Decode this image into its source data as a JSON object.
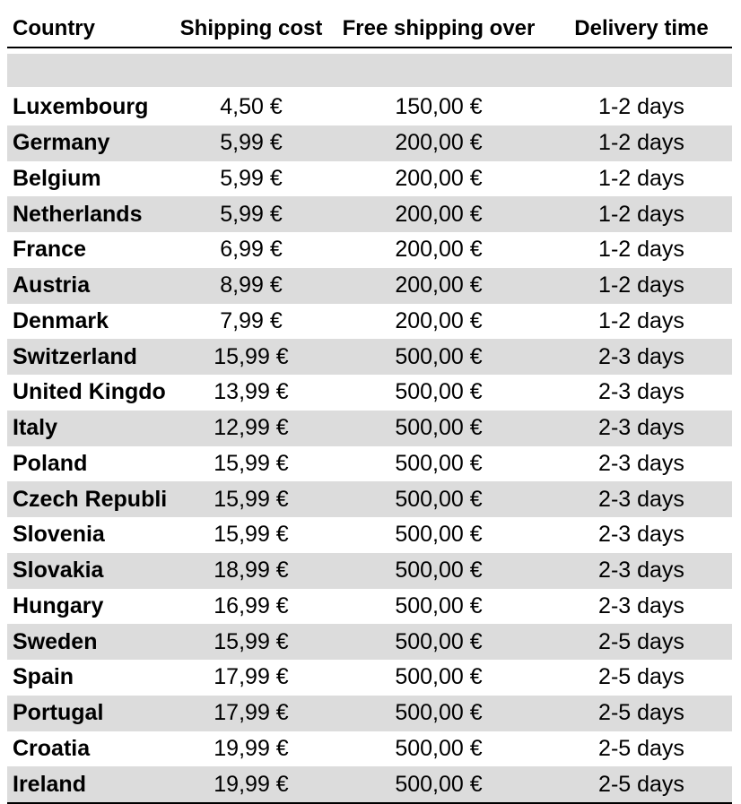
{
  "table": {
    "headers": {
      "country": "Country",
      "shipping_cost": "Shipping cost",
      "free_shipping_over": "Free shipping over",
      "delivery_time": "Delivery time"
    },
    "rows": [
      {
        "country": "Luxembourg",
        "shipping_cost": "4,50 €",
        "free_shipping_over": "150,00 €",
        "delivery_time": "1-2 days"
      },
      {
        "country": "Germany",
        "shipping_cost": "5,99 €",
        "free_shipping_over": "200,00 €",
        "delivery_time": "1-2 days"
      },
      {
        "country": "Belgium",
        "shipping_cost": "5,99 €",
        "free_shipping_over": "200,00 €",
        "delivery_time": "1-2 days"
      },
      {
        "country": "Netherlands",
        "shipping_cost": "5,99 €",
        "free_shipping_over": "200,00 €",
        "delivery_time": "1-2 days"
      },
      {
        "country": "France",
        "shipping_cost": "6,99 €",
        "free_shipping_over": "200,00 €",
        "delivery_time": "1-2 days"
      },
      {
        "country": "Austria",
        "shipping_cost": "8,99 €",
        "free_shipping_over": "200,00 €",
        "delivery_time": "1-2 days"
      },
      {
        "country": "Denmark",
        "shipping_cost": "7,99 €",
        "free_shipping_over": "200,00 €",
        "delivery_time": "1-2 days"
      },
      {
        "country": "Switzerland",
        "shipping_cost": "15,99 €",
        "free_shipping_over": "500,00 €",
        "delivery_time": "2-3 days"
      },
      {
        "country": "United Kingdo",
        "shipping_cost": "13,99 €",
        "free_shipping_over": "500,00 €",
        "delivery_time": "2-3 days"
      },
      {
        "country": "Italy",
        "shipping_cost": "12,99 €",
        "free_shipping_over": "500,00 €",
        "delivery_time": "2-3 days"
      },
      {
        "country": "Poland",
        "shipping_cost": "15,99 €",
        "free_shipping_over": "500,00 €",
        "delivery_time": "2-3 days"
      },
      {
        "country": "Czech Republi",
        "shipping_cost": "15,99 €",
        "free_shipping_over": "500,00 €",
        "delivery_time": "2-3 days"
      },
      {
        "country": "Slovenia",
        "shipping_cost": "15,99 €",
        "free_shipping_over": "500,00 €",
        "delivery_time": "2-3 days"
      },
      {
        "country": "Slovakia",
        "shipping_cost": "18,99 €",
        "free_shipping_over": "500,00 €",
        "delivery_time": "2-3 days"
      },
      {
        "country": "Hungary",
        "shipping_cost": "16,99 €",
        "free_shipping_over": "500,00 €",
        "delivery_time": "2-3 days"
      },
      {
        "country": "Sweden",
        "shipping_cost": "15,99 €",
        "free_shipping_over": "500,00 €",
        "delivery_time": "2-5 days"
      },
      {
        "country": "Spain",
        "shipping_cost": "17,99 €",
        "free_shipping_over": "500,00 €",
        "delivery_time": "2-5 days"
      },
      {
        "country": "Portugal",
        "shipping_cost": "17,99 €",
        "free_shipping_over": "500,00 €",
        "delivery_time": "2-5 days"
      },
      {
        "country": "Croatia",
        "shipping_cost": "19,99 €",
        "free_shipping_over": "500,00 €",
        "delivery_time": "2-5 days"
      },
      {
        "country": "Ireland",
        "shipping_cost": "19,99 €",
        "free_shipping_over": "500,00 €",
        "delivery_time": "2-5 days"
      }
    ]
  },
  "colors": {
    "stripe": "#dcdcdc",
    "border": "#000000"
  }
}
